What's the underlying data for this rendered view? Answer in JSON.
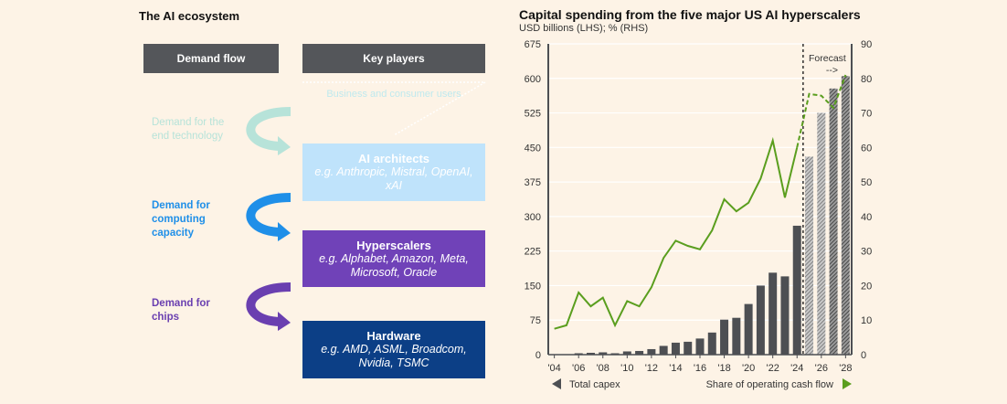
{
  "diagram": {
    "title": "The AI ecosystem",
    "headers": {
      "demand_flow": "Demand flow",
      "key_players": "Key players"
    },
    "users_label": "Business and consumer users",
    "flows": [
      {
        "label": "Demand for the end technology",
        "color": "#b7e3d9"
      },
      {
        "label": "Demand for computing capacity",
        "color": "#1f8fe8"
      },
      {
        "label": "Demand for chips",
        "color": "#6a3fb0"
      }
    ],
    "players": [
      {
        "name": "AI architects",
        "examples": "e.g. Anthropic, Mistral, OpenAI, xAI",
        "color": "#bfe3fb"
      },
      {
        "name": "Hyperscalers",
        "examples": "e.g. Alphabet, Amazon, Meta, Microsoft, Oracle",
        "color": "#7042b8"
      },
      {
        "name": "Hardware",
        "examples": "e.g. AMD, ASML, Broadcom, Nvidia, TSMC",
        "color": "#0c3f86"
      }
    ]
  },
  "chart_data": {
    "type": "bar+line",
    "title": "Capital spending from the five major US AI hyperscalers",
    "subtitle": "USD billions (LHS); % (RHS)",
    "forecast_label": "Forecast",
    "forecast_arrow": "-->",
    "x": [
      2004,
      2005,
      2006,
      2007,
      2008,
      2009,
      2010,
      2011,
      2012,
      2013,
      2014,
      2015,
      2016,
      2017,
      2018,
      2019,
      2020,
      2021,
      2022,
      2023,
      2024,
      2025,
      2026,
      2027,
      2028
    ],
    "x_tick_labels": [
      "'04",
      "'06",
      "'08",
      "'10",
      "'12",
      "'14",
      "'16",
      "'18",
      "'20",
      "'22",
      "'24",
      "'26",
      "'28"
    ],
    "forecast_from": 2025,
    "series": [
      {
        "name": "Total capex",
        "axis": "left",
        "type": "bar",
        "color": "#4d4f53",
        "values": [
          1,
          1,
          3,
          4,
          5,
          3,
          7,
          8,
          12,
          19,
          26,
          28,
          35,
          48,
          76,
          80,
          110,
          150,
          178,
          170,
          280,
          430,
          525,
          578,
          605
        ]
      },
      {
        "name": "Share of operating cash flow",
        "axis": "right",
        "type": "line",
        "color": "#5a9e1e",
        "values": [
          7.5,
          8.5,
          18,
          14,
          16.5,
          8.5,
          15.5,
          14,
          19.5,
          28,
          33,
          31.5,
          30.5,
          36,
          45,
          41.5,
          44,
          51,
          62,
          45.5,
          60,
          75.5,
          75,
          71.5,
          81
        ]
      }
    ],
    "left_axis": {
      "ylim": [
        0,
        675
      ],
      "ticks": [
        "0",
        "75",
        "150",
        "225",
        "300",
        "375",
        "450",
        "525",
        "600",
        "675"
      ]
    },
    "right_axis": {
      "ylim": [
        0,
        90
      ],
      "ticks": [
        "0",
        "10",
        "20",
        "30",
        "40",
        "50",
        "60",
        "70",
        "80",
        "90"
      ]
    },
    "legend": {
      "left": "Total capex",
      "right": "Share of operating cash flow",
      "placement": "bottom"
    },
    "grid": true
  }
}
